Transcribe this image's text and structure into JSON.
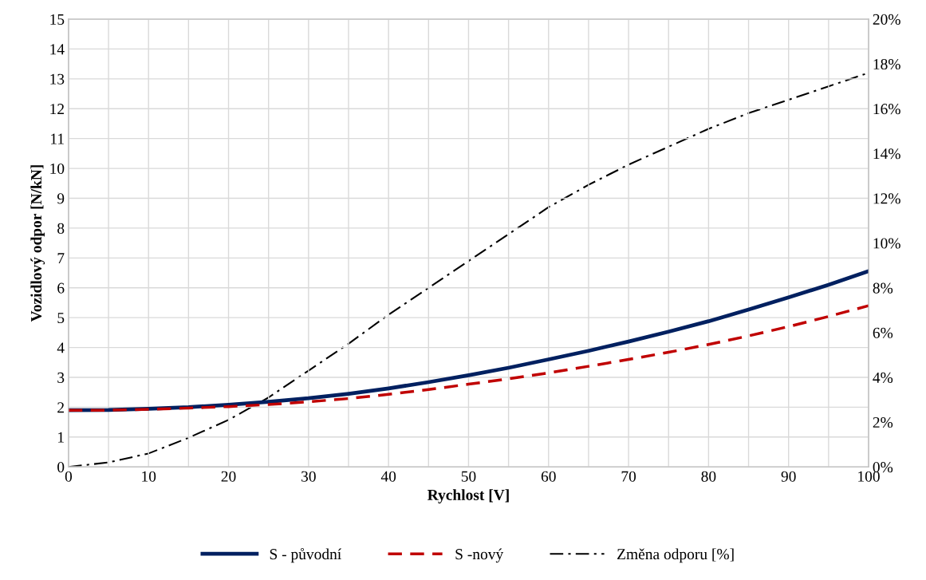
{
  "chart_data": {
    "type": "line",
    "xlabel": "Rychlost [V]",
    "ylabel": "Vozidlový odpor [N/kN]",
    "x": [
      0,
      5,
      10,
      15,
      20,
      25,
      30,
      35,
      40,
      45,
      50,
      55,
      60,
      65,
      70,
      75,
      80,
      85,
      90,
      95,
      100
    ],
    "xlim": [
      0,
      100
    ],
    "xticks": [
      0,
      {
        "value": 5,
        "label": null
      },
      10,
      {
        "value": 15,
        "label": null
      },
      20,
      {
        "value": 25,
        "label": null
      },
      30,
      {
        "value": 35,
        "label": null
      },
      40,
      {
        "value": 45,
        "label": null
      },
      50,
      {
        "value": 55,
        "label": null
      },
      60,
      {
        "value": 65,
        "label": null
      },
      70,
      {
        "value": 75,
        "label": null
      },
      80,
      {
        "value": 85,
        "label": null
      },
      90,
      {
        "value": 95,
        "label": null
      },
      100
    ],
    "ylim": [
      0,
      15
    ],
    "yticks": [
      0,
      1,
      2,
      3,
      4,
      5,
      6,
      7,
      8,
      9,
      10,
      11,
      12,
      13,
      14,
      15
    ],
    "y2lim": [
      0,
      20
    ],
    "y2ticks": [
      {
        "value": 0,
        "label": "0%"
      },
      {
        "value": 2,
        "label": "2%"
      },
      {
        "value": 4,
        "label": "4%"
      },
      {
        "value": 6,
        "label": "6%"
      },
      {
        "value": 8,
        "label": "8%"
      },
      {
        "value": 10,
        "label": "10%"
      },
      {
        "value": 12,
        "label": "12%"
      },
      {
        "value": 14,
        "label": "14%"
      },
      {
        "value": 16,
        "label": "16%"
      },
      {
        "value": 18,
        "label": "18%"
      },
      {
        "value": 20,
        "label": "20%"
      }
    ],
    "grid": true,
    "legend": "bottom",
    "series": [
      {
        "name": "S - původní",
        "color": "#002060",
        "line_style": "solid",
        "values": [
          1.9,
          1.91,
          1.95,
          2.0,
          2.08,
          2.18,
          2.3,
          2.45,
          2.63,
          2.84,
          3.07,
          3.32,
          3.6,
          3.89,
          4.2,
          4.53,
          4.88,
          5.27,
          5.68,
          6.1,
          6.56
        ]
      },
      {
        "name": "S -nový",
        "color": "#c00000",
        "line_style": "dashed",
        "values": [
          1.9,
          1.9,
          1.93,
          1.97,
          2.02,
          2.09,
          2.18,
          2.29,
          2.43,
          2.59,
          2.77,
          2.95,
          3.15,
          3.37,
          3.6,
          3.84,
          4.1,
          4.39,
          4.7,
          5.04,
          5.4
        ]
      },
      {
        "name": "Změna odporu [%]",
        "color": "#000000",
        "line_style": "dashdot",
        "axis": "y2",
        "values": [
          0,
          0.2,
          0.6,
          1.3,
          2.1,
          3.1,
          4.3,
          5.5,
          6.8,
          8.0,
          9.2,
          10.4,
          11.6,
          12.6,
          13.5,
          14.3,
          15.1,
          15.8,
          16.4,
          17.0,
          17.6
        ]
      }
    ]
  }
}
